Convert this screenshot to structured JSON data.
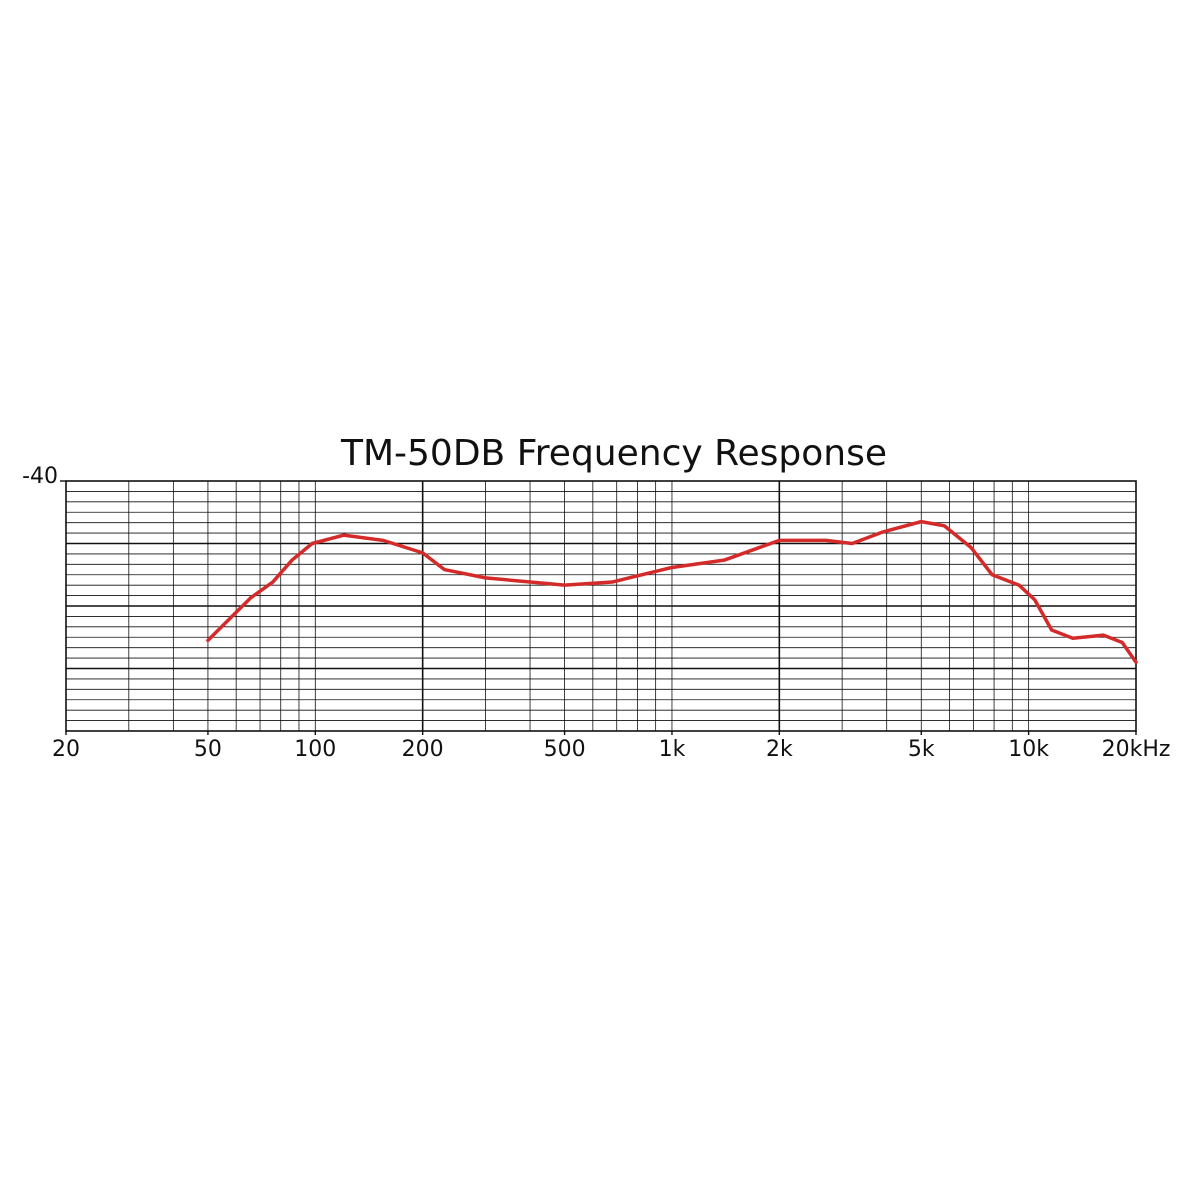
{
  "chart_data": {
    "type": "line",
    "title": "TM-50DB Frequency Response",
    "x": [
      50,
      58,
      66,
      76,
      86,
      98,
      120,
      155,
      200,
      230,
      300,
      500,
      680,
      1000,
      1400,
      2000,
      2700,
      3200,
      3900,
      5000,
      5800,
      6900,
      7900,
      9400,
      10400,
      11600,
      13300,
      16200,
      18300,
      20000
    ],
    "series": [
      {
        "color": "#d42a2a",
        "values": [
          -55.3,
          -53.1,
          -51.2,
          -49.7,
          -47.6,
          -46.0,
          -45.2,
          -45.7,
          -46.9,
          -48.5,
          -49.3,
          -50.0,
          -49.7,
          -48.3,
          -47.6,
          -45.7,
          -45.7,
          -46.0,
          -44.9,
          -43.9,
          -44.3,
          -46.4,
          -49.0,
          -50.0,
          -51.4,
          -54.3,
          -55.1,
          -54.8,
          -55.5,
          -57.4
        ]
      }
    ],
    "xlim": [
      20,
      20000
    ],
    "log_x": true,
    "xticks": [
      20,
      50,
      100,
      200,
      500,
      {
        "value": 1000,
        "label": "1k"
      },
      {
        "value": 2000,
        "label": "2k"
      },
      {
        "value": 5000,
        "label": "5k"
      },
      {
        "value": 10000,
        "label": "10k"
      },
      {
        "value": 20000,
        "label": "20kHz"
      }
    ],
    "xgrid_major": [
      200,
      2000
    ],
    "xgrid_minor": [
      30,
      40,
      50,
      60,
      70,
      80,
      90,
      100,
      300,
      400,
      500,
      600,
      700,
      800,
      900,
      1000,
      3000,
      4000,
      5000,
      6000,
      7000,
      8000,
      9000,
      10000
    ],
    "ylim": [
      -64,
      -40
    ],
    "yticks": [
      -40
    ],
    "ygrid_major": [
      -46,
      -52,
      -58
    ],
    "ygrid_minor": [
      -41,
      -42,
      -43,
      -44,
      -45,
      -47,
      -48,
      -49,
      -50,
      -51,
      -53,
      -54,
      -55,
      -56,
      -57,
      -59,
      -60,
      -61,
      -62,
      -63
    ]
  }
}
